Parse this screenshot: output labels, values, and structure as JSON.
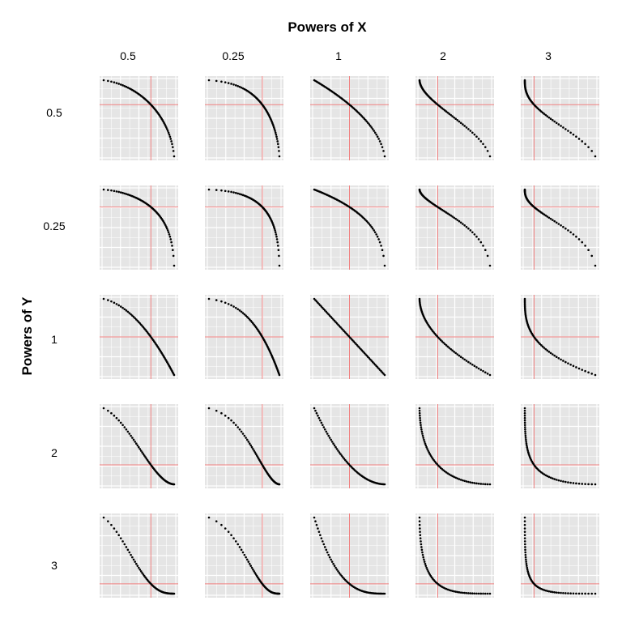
{
  "title": "Powers of X",
  "ylabel": "Powers of Y",
  "colors": {
    "panel_bg": "#e5e5e5",
    "grid": "#ffffff",
    "ref_line": "#f08080",
    "points": "#000000"
  },
  "chart_data": {
    "type": "scatter",
    "layout": "facet-grid",
    "title": "Powers of X",
    "xlabel": "",
    "ylabel": "Powers of Y",
    "col_facets": [
      "0.5",
      "0.25",
      "1",
      "2",
      "3"
    ],
    "row_facets": [
      "0.5",
      "0.25",
      "1",
      "2",
      "3"
    ],
    "col_powers": [
      0.5,
      0.25,
      1,
      2,
      3
    ],
    "row_powers": [
      0.5,
      0.25,
      1,
      2,
      3
    ],
    "x_domain": [
      0,
      1
    ],
    "point_count": 60,
    "reference_lines": "red median line per panel (vertical at median x, horizontal at median y)",
    "grid": true,
    "legend": "none"
  }
}
